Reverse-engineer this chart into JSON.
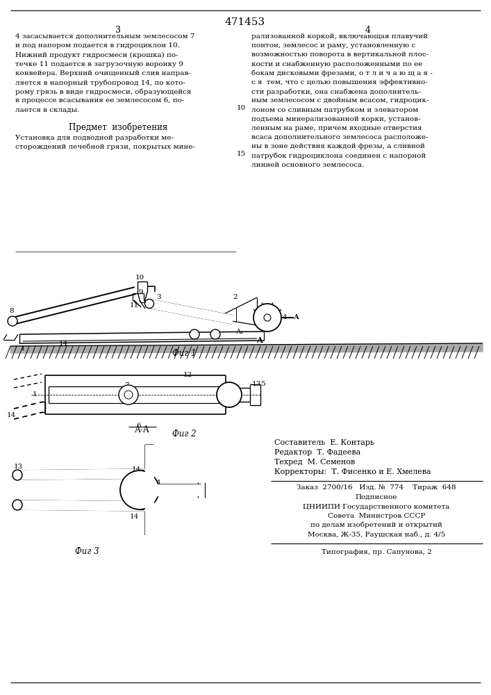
{
  "page_title": "471453",
  "col_left": "3",
  "col_right": "4",
  "text_left_col": [
    "4 засасывается дополнительным землесосом 7",
    "и под напором подается в гидроциклон 10.",
    "Нижний продукт гидросмеси (крошка) по-",
    "течке 11 подается в загрузочную воронку 9",
    "конвейера. Верхний очищенный слив направ-",
    "ляется в напорный трубопровод 14, по кото-",
    "рому грязь в виде гидросмеси, образующейся",
    "в процессе всасывания ее землесосом 6, по-",
    "лается в склады."
  ],
  "text_right_col": [
    "рализованной коркой, включающая плавучий",
    "понтон, землесос и раму, установленную с",
    "возможностью поворота в вертикальной плос-",
    "кости и снабженную расположенными по ее",
    "бокам дисковыми фрезами, о т л и ч а ю щ а я -",
    "с я  тем, что с целью повышения эффективно-",
    "сти разработки, она снабжена дополнитель-",
    "ным землесосом с двойным всасом, гидроцик-",
    "лоном со сливным патрубком и элеватором",
    "подъема минерализованной корки, установ-",
    "ленным на раме, причем входные отверстия",
    "всаса дополнительного землесоса расположе-",
    "ны в зоне действия каждой фрезы, а сливной",
    "патрубок гидроциклона соединен с напорной",
    "линией основного землесоса."
  ],
  "predmet_title": "Предмет  изобретения",
  "predmet_text": [
    "Установка для подводной разработки ме-",
    "сторождений лечебной грязи, покрытых мине-"
  ],
  "fig1_caption": "Фиг 1",
  "fig2_caption": "Фиг 2",
  "fig3_caption": "Фиг 3",
  "info_lines": [
    "Составитель  Е. Контарь",
    "Редактор  Т. Фадеева",
    "Техред  М. Семенов",
    "Корректоры:  Т. Фисенко и Е. Хмелева"
  ],
  "order_line": "Заказ  2700/16   Изд. №  774    Тираж  648",
  "podpisnoe": "Подписное",
  "org_lines": [
    "ЦНИИПИ Государственного комитета",
    "Совета  Министров СССР",
    "по делам изобретений и открытий",
    "Москва, Ж-35, Раушская наб., д. 4/5"
  ],
  "tipografia": "Типография, пр. Сапунова, 2",
  "bg_color": "#ffffff",
  "text_color": "#000000"
}
